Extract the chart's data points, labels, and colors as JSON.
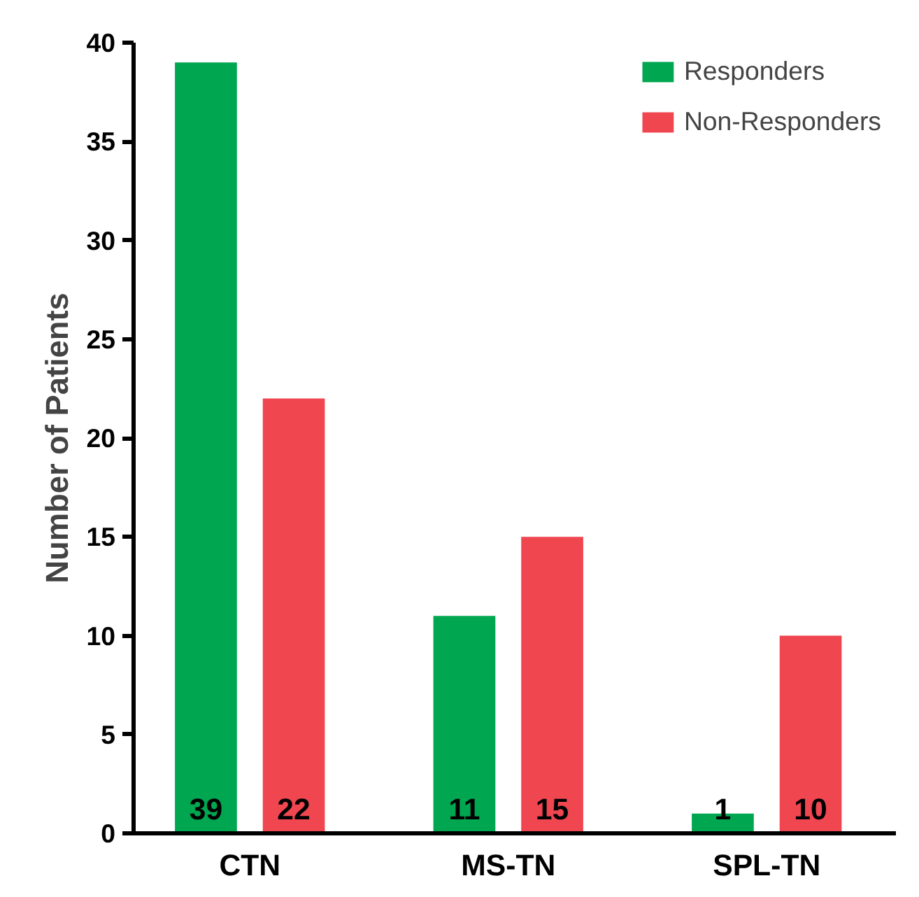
{
  "chart_data": {
    "type": "bar",
    "ylabel": "Number of Patients",
    "categories": [
      "CTN",
      "MS-TN",
      "SPL-TN"
    ],
    "series": [
      {
        "name": "Responders",
        "color": "#00a650",
        "values": [
          39,
          11,
          1
        ]
      },
      {
        "name": "Non-Responders",
        "color": "#ef4650",
        "values": [
          22,
          15,
          10
        ]
      }
    ],
    "ylim": [
      0,
      40
    ],
    "yticks": [
      0,
      5,
      10,
      15,
      20,
      25,
      30,
      35,
      40
    ],
    "grid": false,
    "legend": "top right",
    "data_labels": true
  }
}
